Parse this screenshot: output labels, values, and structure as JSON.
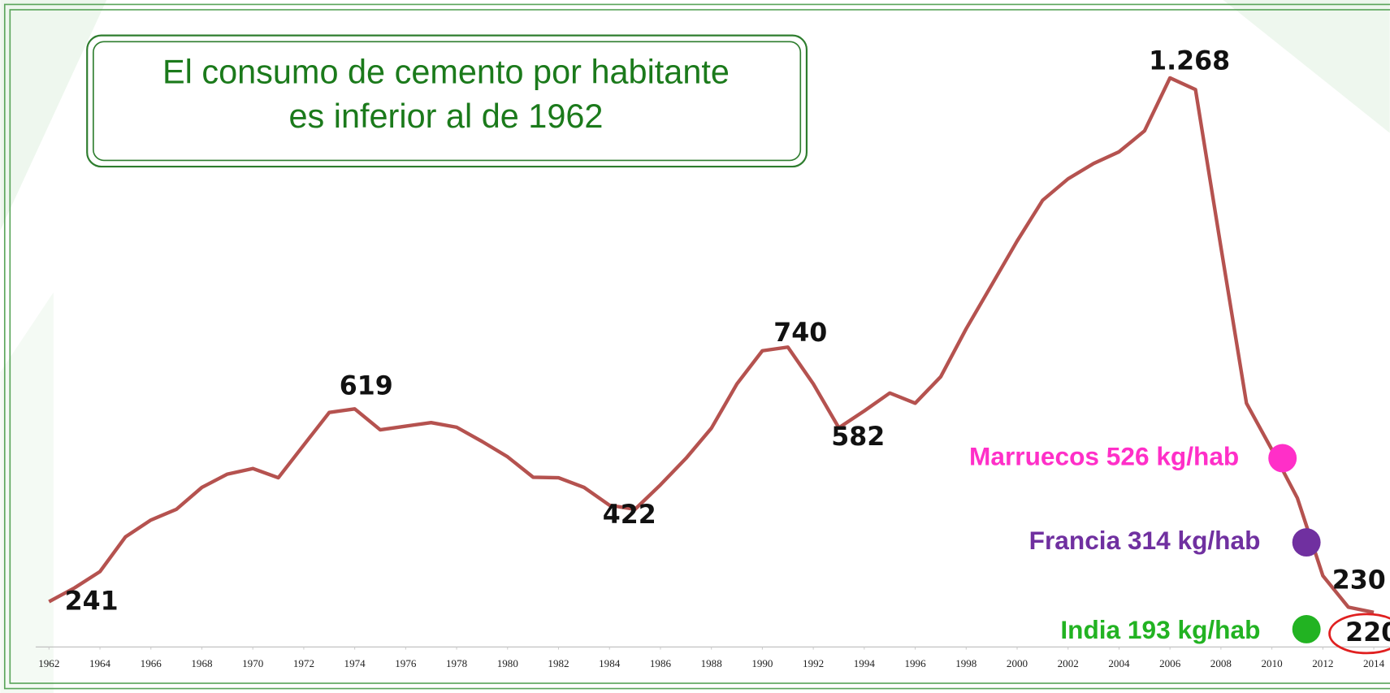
{
  "chart_data": {
    "type": "line",
    "title": [
      "El consumo de cemento por habitante",
      "es inferior al de 1962"
    ],
    "x": [
      1962,
      1963,
      1964,
      1965,
      1966,
      1967,
      1968,
      1969,
      1970,
      1971,
      1972,
      1973,
      1974,
      1975,
      1976,
      1977,
      1978,
      1979,
      1980,
      1981,
      1982,
      1983,
      1984,
      1985,
      1986,
      1987,
      1988,
      1989,
      1990,
      1991,
      1992,
      1993,
      1994,
      1995,
      1996,
      1997,
      1998,
      1999,
      2000,
      2001,
      2002,
      2003,
      2004,
      2005,
      2006,
      2007,
      2008,
      2009,
      2010,
      2011,
      2012,
      2013,
      2014
    ],
    "xlim": [
      1962,
      2014
    ],
    "xticks": [
      1962,
      1964,
      1966,
      1968,
      1970,
      1972,
      1974,
      1976,
      1978,
      1980,
      1982,
      1984,
      1986,
      1988,
      1990,
      1992,
      1994,
      1996,
      1998,
      2000,
      2002,
      2004,
      2006,
      2008,
      2010,
      2012,
      2014
    ],
    "series": [
      {
        "color": "#b5524f",
        "values": [
          241,
          268,
          300,
          368,
          401,
          422,
          465,
          491,
          502,
          484,
          548,
          612,
          619,
          578,
          585,
          592,
          583,
          555,
          525,
          485,
          484,
          465,
          430,
          422,
          470,
          522,
          581,
          668,
          733,
          740,
          668,
          582,
          615,
          650,
          630,
          682,
          776,
          862,
          948,
          1028,
          1070,
          1100,
          1123,
          1164,
          1268,
          1245,
          936,
          630,
          539,
          444,
          292,
          230,
          220
        ],
        "value_labels": [
          null,
          null,
          null,
          null,
          null,
          null,
          null,
          null,
          null,
          null,
          null,
          null,
          null,
          null,
          null,
          null,
          null,
          null,
          null,
          null,
          null,
          null,
          null,
          null,
          null,
          null,
          null,
          null,
          null,
          null,
          null,
          null,
          null,
          null,
          null,
          null,
          null,
          null,
          null,
          null,
          null,
          null,
          null,
          null,
          "1.268",
          null,
          null,
          null,
          null,
          null,
          null,
          null,
          null
        ]
      }
    ],
    "annotations": [
      {
        "text": "Marruecos 526 kg/hab",
        "color": "#ff2fc8"
      },
      {
        "text": "Francia 314 kg/hab",
        "color": "#7030a0"
      },
      {
        "text": "India 193 kg/hab",
        "color": "#22b322"
      }
    ],
    "highlight_color": "#e02020"
  }
}
